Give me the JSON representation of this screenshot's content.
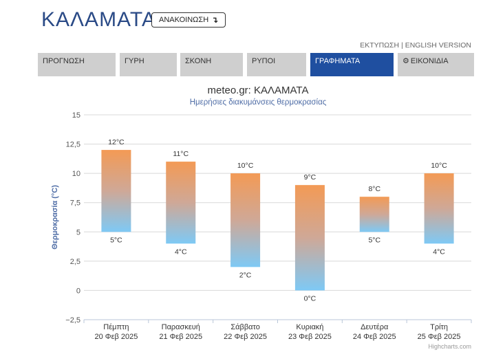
{
  "header": {
    "title": "ΚΑΛΑΜΑΤΑ",
    "announce_label": "ΑΝΑΚΟΙΝΩΣΗ",
    "announce_icon": "arrow-down-return-icon",
    "print_link": "ΕΚΤΥΠΩΣΗ",
    "separator": "|",
    "english_link": "ENGLISH VERSION"
  },
  "tabs": [
    {
      "label": "ΠΡΟΓΝΩΣΗ",
      "active": false
    },
    {
      "label": "ΓΥΡΗ",
      "active": false
    },
    {
      "label": "ΣΚΟΝΗ",
      "active": false
    },
    {
      "label": "ΡΥΠΟΙ",
      "active": false
    },
    {
      "label": "ΓΡΑΦΗΜΑΤΑ",
      "active": true
    },
    {
      "label": "ΕΙΚΟΝΙΔΙΑ",
      "active": false,
      "icon": "gear-icon"
    }
  ],
  "colors": {
    "brand_blue": "#2a4a86",
    "active_tab": "#1f4fa0",
    "bar_top": "#f39a55",
    "bar_bottom": "#7ec9f5",
    "axis_title": "#4f6da6"
  },
  "chart_data": {
    "type": "bar",
    "title": "meteo.gr: ΚΑΛΑΜΑΤΑ",
    "subtitle": "Ημερήσιες διακυμάνσεις θερμοκρασίας",
    "ylabel": "Θερμοκρασία (°C)",
    "ylim": [
      -2.5,
      15
    ],
    "yticks": [
      "−2,5",
      "0",
      "2,5",
      "5",
      "7,5",
      "10",
      "12,5",
      "15"
    ],
    "ytick_values": [
      -2.5,
      0,
      2.5,
      5,
      7.5,
      10,
      12.5,
      15
    ],
    "categories": [
      {
        "day": "Πέμπτη",
        "date": "20 Φεβ 2025"
      },
      {
        "day": "Παρασκευή",
        "date": "21 Φεβ 2025"
      },
      {
        "day": "Σάββατο",
        "date": "22 Φεβ 2025"
      },
      {
        "day": "Κυριακή",
        "date": "23 Φεβ 2025"
      },
      {
        "day": "Δευτέρα",
        "date": "24 Φεβ 2025"
      },
      {
        "day": "Τρίτη",
        "date": "25 Φεβ 2025"
      }
    ],
    "max": [
      12,
      11,
      10,
      9,
      8,
      10
    ],
    "min": [
      5,
      4,
      2,
      0,
      5,
      4
    ],
    "max_labels": [
      "12°C",
      "11°C",
      "10°C",
      "9°C",
      "8°C",
      "10°C"
    ],
    "min_labels": [
      "5°C",
      "4°C",
      "2°C",
      "0°C",
      "5°C",
      "4°C"
    ],
    "grid": true,
    "credit": "Highcharts.com"
  }
}
